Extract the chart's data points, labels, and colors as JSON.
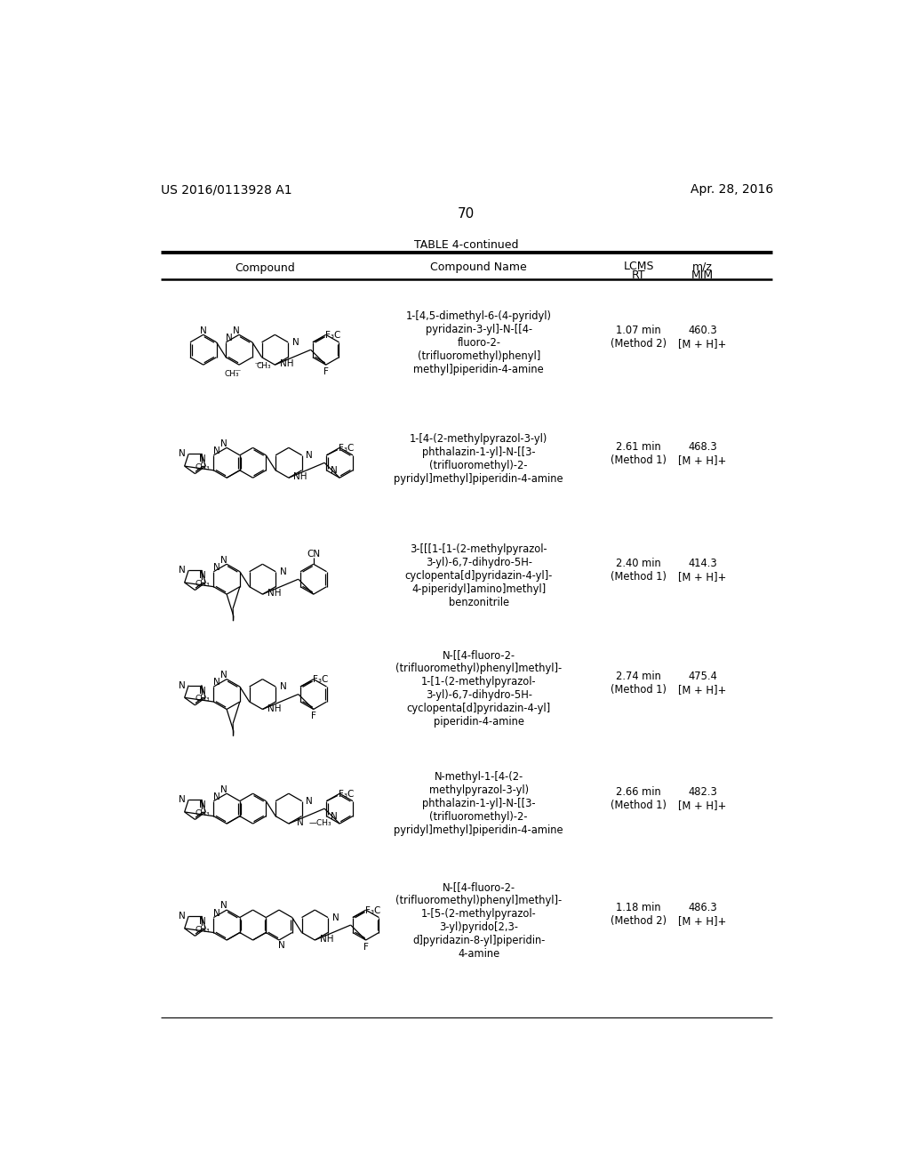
{
  "page_number": "70",
  "patent_number": "US 2016/0113928 A1",
  "patent_date": "Apr. 28, 2016",
  "table_title": "TABLE 4-continued",
  "rows": [
    {
      "compound_name_text": "1-[4,5-dimethyl-6-(4-pyridyl)\npyridazin-3-yl]-N-[[4-\nfluoro-2-\n(trifluoromethyl)phenyl]\nmethyl]piperidin-4-amine",
      "lcms_rt": "1.07 min\n(Method 2)",
      "mz_mim": "460.3\n[M + H]+"
    },
    {
      "compound_name_text": "1-[4-(2-methylpyrazol-3-yl)\nphthalazin-1-yl]-N-[[3-\n(trifluoromethyl)-2-\npyridyl]methyl]piperidin-4-amine",
      "lcms_rt": "2.61 min\n(Method 1)",
      "mz_mim": "468.3\n[M + H]+"
    },
    {
      "compound_name_text": "3-[[[1-[1-(2-methylpyrazol-\n3-yl)-6,7-dihydro-5H-\ncyclopenta[d]pyridazin-4-yl]-\n4-piperidyl]amino]methyl]\nbenzonitrile",
      "lcms_rt": "2.40 min\n(Method 1)",
      "mz_mim": "414.3\n[M + H]+"
    },
    {
      "compound_name_text": "N-[[4-fluoro-2-\n(trifluoromethyl)phenyl]methyl]-\n1-[1-(2-methylpyrazol-\n3-yl)-6,7-dihydro-5H-\ncyclopenta[d]pyridazin-4-yl]\npiperidin-4-amine",
      "lcms_rt": "2.74 min\n(Method 1)",
      "mz_mim": "475.4\n[M + H]+"
    },
    {
      "compound_name_text": "N-methyl-1-[4-(2-\nmethylpyrazol-3-yl)\nphthalazin-1-yl]-N-[[3-\n(trifluoromethyl)-2-\npyridyl]methyl]piperidin-4-amine",
      "lcms_rt": "2.66 min\n(Method 1)",
      "mz_mim": "482.3\n[M + H]+"
    },
    {
      "compound_name_text": "N-[[4-fluoro-2-\n(trifluoromethyl)phenyl]methyl]-\n1-[5-(2-methylpyrazol-\n3-yl)pyrido[2,3-\nd]pyridazin-8-yl]piperidin-\n4-amine",
      "lcms_rt": "1.18 min\n(Method 2)",
      "mz_mim": "486.3\n[M + H]+"
    }
  ]
}
